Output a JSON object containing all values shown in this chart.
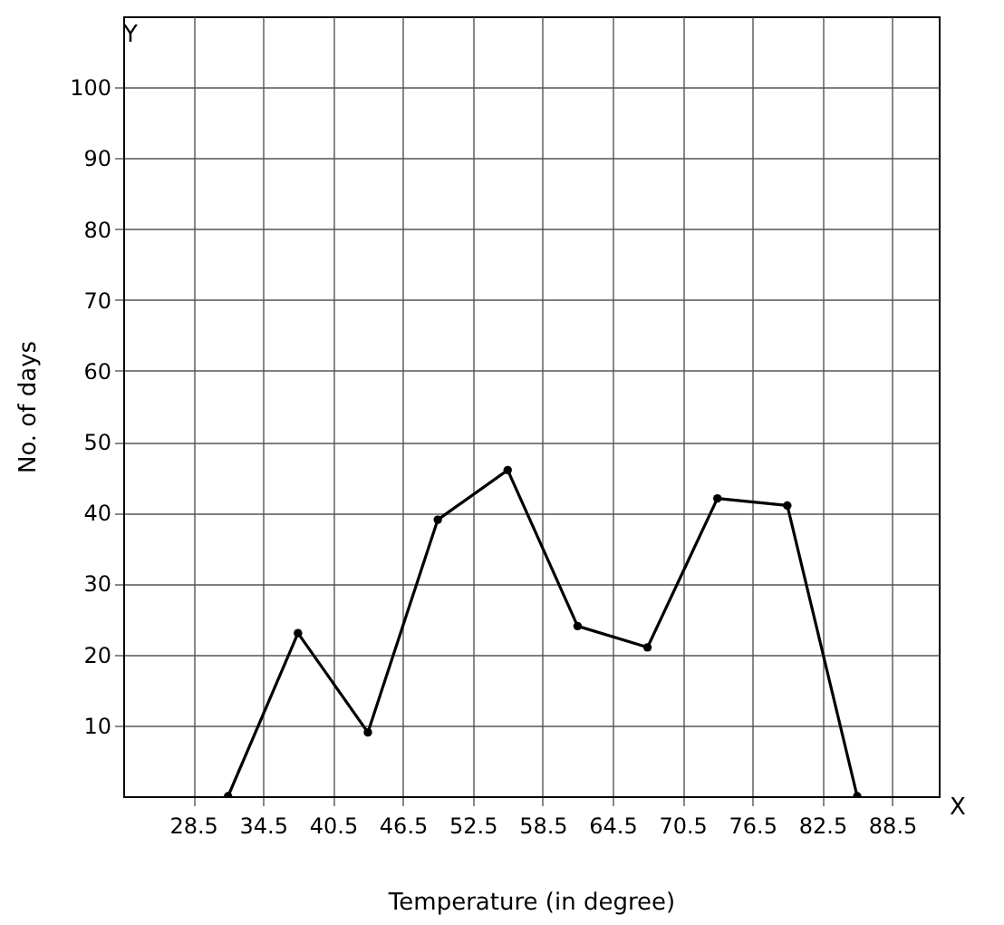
{
  "chart_data": {
    "type": "line",
    "xlabel": "Temperature (in degree)",
    "ylabel": "No. of days",
    "x": [
      31.5,
      37.5,
      43.5,
      49.5,
      55.5,
      61.5,
      67.5,
      73.5,
      79.5,
      85.5
    ],
    "series": [
      {
        "color": "#000000",
        "values": [
          0,
          23,
          9,
          39,
          46,
          24,
          21,
          42,
          41,
          0
        ]
      }
    ],
    "xlim": [
      22.5,
      92.5
    ],
    "xticks": [
      28.5,
      34.5,
      40.5,
      46.5,
      52.5,
      58.5,
      64.5,
      70.5,
      76.5,
      82.5,
      88.5
    ],
    "ylim": [
      0,
      110
    ],
    "yticks": [
      10,
      20,
      30,
      40,
      50,
      60,
      70,
      80,
      90,
      100
    ],
    "annotations": [
      "X",
      "Y"
    ],
    "grid": true,
    "marker": "circle",
    "line_style": "solid"
  }
}
